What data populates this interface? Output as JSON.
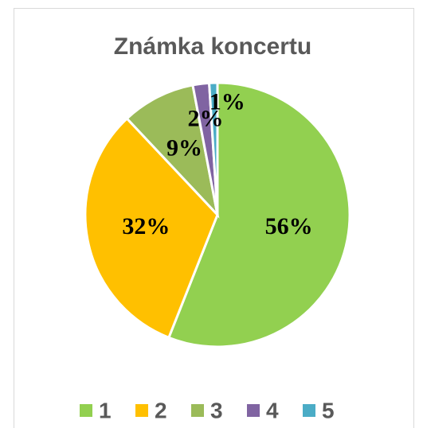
{
  "chart_data": {
    "type": "pie",
    "title": "Známka koncertu",
    "categories": [
      "1",
      "2",
      "3",
      "4",
      "5"
    ],
    "values": [
      56,
      32,
      9,
      2,
      1
    ],
    "value_labels": [
      "56%",
      "32%",
      "9%",
      "2%",
      "1%"
    ],
    "colors": [
      "#92d050",
      "#ffc000",
      "#9bbb59",
      "#8064a2",
      "#4bacc6"
    ],
    "legend": "bottom"
  }
}
